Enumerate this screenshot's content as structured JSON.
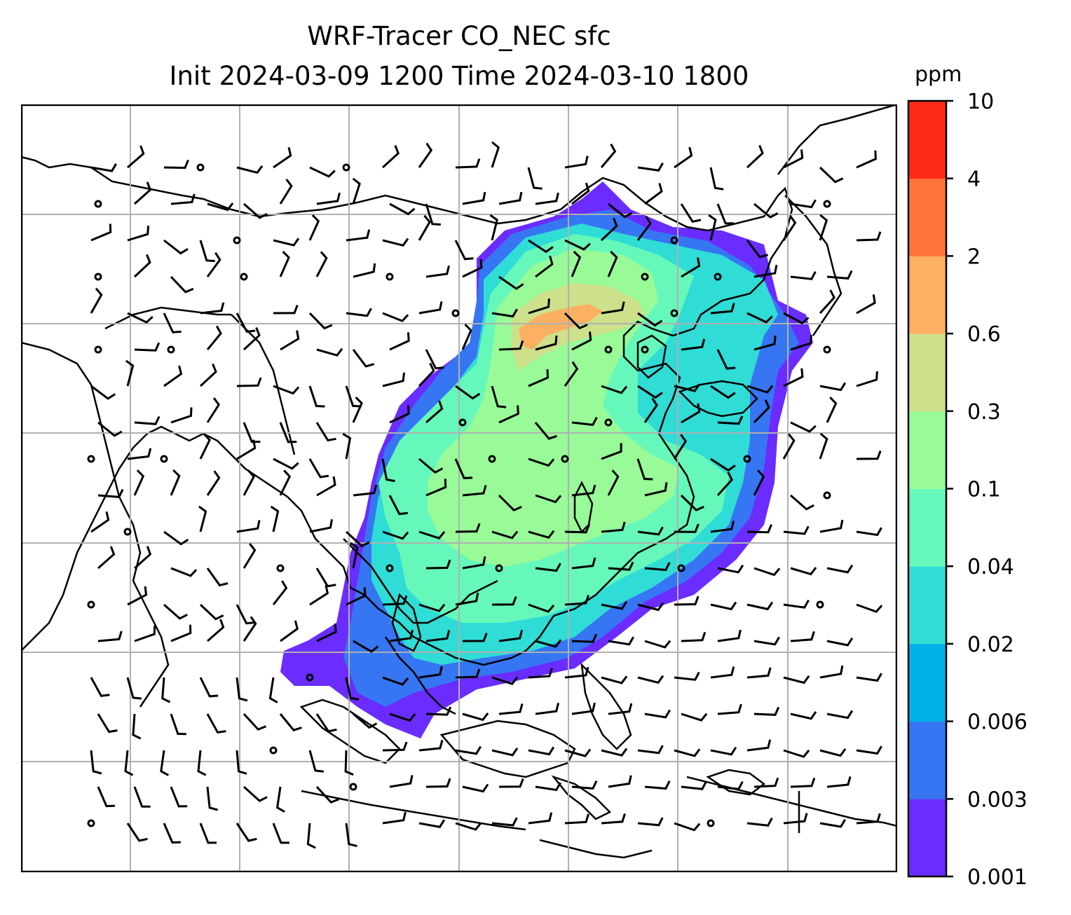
{
  "title": {
    "line1": "WRF-Tracer CO_NEC sfc",
    "line2": "Init 2024-03-09 1200 Time 2024-03-10 1800"
  },
  "colorbar": {
    "unit": "ppm",
    "levels": [
      "0.001",
      "0.003",
      "0.006",
      "0.02",
      "0.04",
      "0.1",
      "0.3",
      "0.6",
      "2",
      "4",
      "10"
    ],
    "colors": [
      "#6a2cff",
      "#3676f2",
      "#02b0ea",
      "#30dcd6",
      "#66f8ba",
      "#98fb98",
      "#cde08a",
      "#fdb062",
      "#ff7438",
      "#ff2a18"
    ]
  },
  "map": {
    "field": "CO_NEC",
    "level": "sfc",
    "gridlines": true,
    "wind_barbs": true
  }
}
